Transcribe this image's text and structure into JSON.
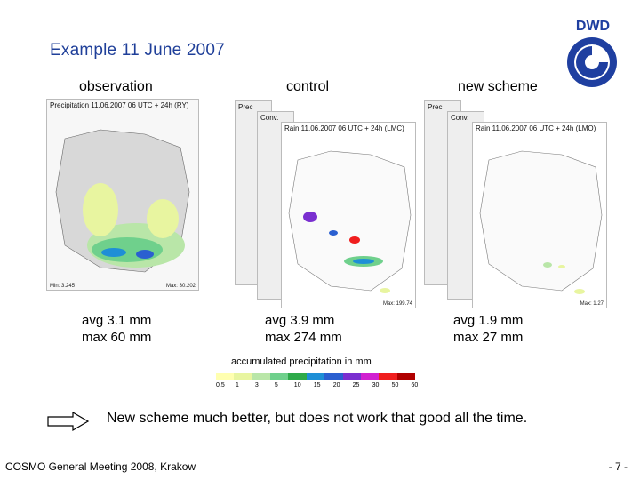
{
  "title": "Example 11 June 2007",
  "columns": {
    "observation": "observation",
    "control": "control",
    "new_scheme": "new scheme"
  },
  "panels": {
    "obs_caption": "Precipitation 11.06.2007 06 UTC + 24h (RY)",
    "obs_footer_min": "Min: 3.245",
    "obs_footer_max": "Max: 30.202",
    "ctrl_caption": "Rain 11.06.2007 06 UTC + 24h (LMC)",
    "ctrl_back1": "Prec",
    "ctrl_back2": "Conv.",
    "ctrl_footer_max": "Max: 199.74",
    "new_caption": "Rain 11.06.2007 06 UTC + 24h (LMO)",
    "new_back1": "Prec",
    "new_back2": "Conv.",
    "new_footer_max": "Max: 1.27"
  },
  "stats": {
    "observation": {
      "avg": "avg  3.1 mm",
      "max": "max 60 mm"
    },
    "control": {
      "avg": "avg  3.9 mm",
      "max": "max  274 mm"
    },
    "new_scheme": {
      "avg": "avg 1.9 mm",
      "max": "max 27 mm"
    }
  },
  "legend": {
    "title": "accumulated precipitation in mm",
    "ticks": [
      "0.5",
      "1",
      "3",
      "5",
      "10",
      "15",
      "20",
      "25",
      "30",
      "50",
      "60"
    ],
    "colors": [
      "#ffffb0",
      "#e8f5a0",
      "#b9e6a8",
      "#6fd08c",
      "#2eaa4a",
      "#1e8fd6",
      "#2a5fd0",
      "#7a2fd0",
      "#d020d0",
      "#f01e1e",
      "#b00000"
    ]
  },
  "note": "New scheme much better, but does not work that good all the time.",
  "footer": {
    "left": "COSMO General Meeting 2008, Krakow",
    "right": "- 7 -"
  },
  "logo": {
    "text": "DWD",
    "color": "#1f3fa0"
  }
}
